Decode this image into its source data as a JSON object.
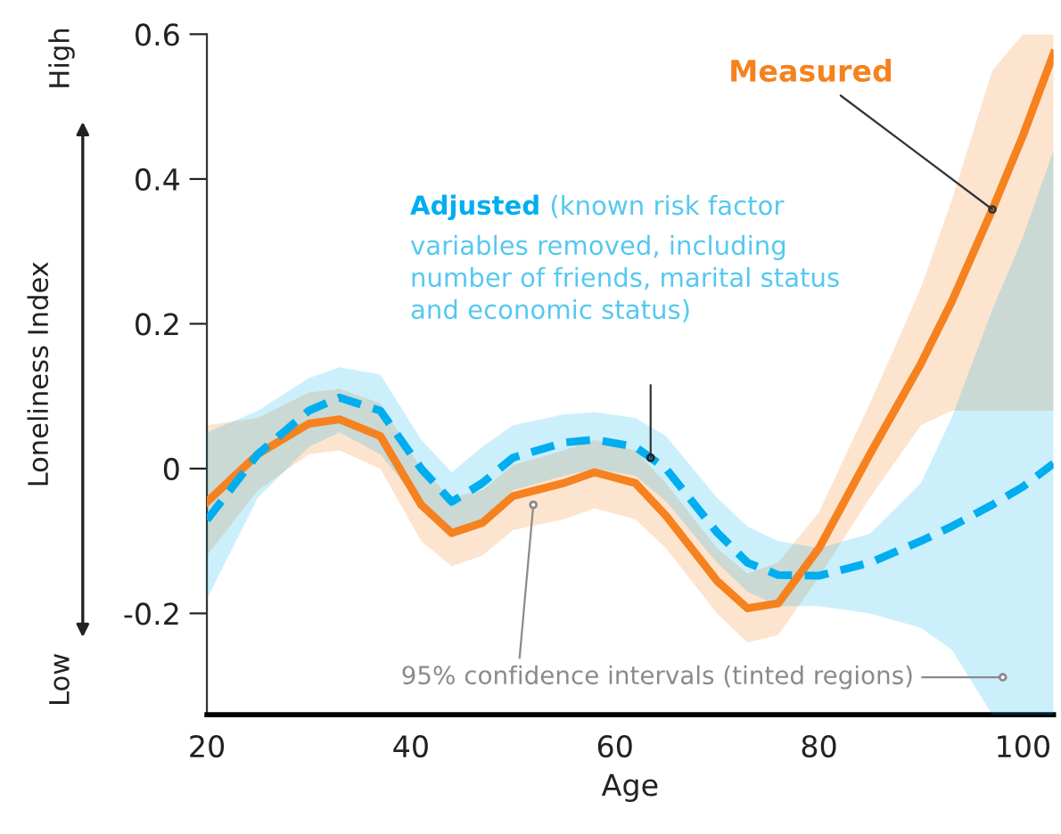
{
  "chart_data": {
    "type": "line",
    "xlabel": "Age",
    "ylabel": "Loneliness Index",
    "x": [
      20,
      25,
      30,
      33,
      37,
      41,
      44,
      47,
      50,
      55,
      58,
      62,
      65,
      70,
      73,
      76,
      80,
      85,
      90,
      93,
      97,
      100,
      103
    ],
    "series": [
      {
        "name": "Measured",
        "color": "#f5821f",
        "line_style": "solid",
        "values": [
          -0.046,
          0.02,
          0.062,
          0.068,
          0.045,
          -0.05,
          -0.089,
          -0.075,
          -0.038,
          -0.02,
          -0.005,
          -0.02,
          -0.065,
          -0.155,
          -0.193,
          -0.186,
          -0.11,
          0.02,
          0.145,
          0.23,
          0.358,
          0.46,
          0.573
        ],
        "lower": [
          -0.12,
          -0.03,
          0.02,
          0.025,
          0.0,
          -0.1,
          -0.135,
          -0.12,
          -0.085,
          -0.07,
          -0.055,
          -0.07,
          -0.11,
          -0.2,
          -0.24,
          -0.23,
          -0.15,
          -0.04,
          0.06,
          0.08,
          0.08,
          0.08,
          0.08
        ],
        "upper": [
          0.06,
          0.07,
          0.105,
          0.11,
          0.09,
          0.0,
          -0.04,
          -0.03,
          0.005,
          0.025,
          0.04,
          0.025,
          -0.02,
          -0.11,
          -0.145,
          -0.13,
          -0.06,
          0.09,
          0.25,
          0.37,
          0.55,
          0.6,
          0.6
        ]
      },
      {
        "name": "Adjusted",
        "color": "#00aeef",
        "line_style": "dashed",
        "values": [
          -0.071,
          0.02,
          0.08,
          0.098,
          0.08,
          0.0,
          -0.046,
          -0.02,
          0.015,
          0.036,
          0.04,
          0.03,
          0.0,
          -0.088,
          -0.13,
          -0.147,
          -0.148,
          -0.13,
          -0.1,
          -0.08,
          -0.05,
          -0.025,
          0.007
        ],
        "lower": [
          -0.18,
          -0.04,
          0.03,
          0.05,
          0.02,
          -0.05,
          -0.09,
          -0.07,
          -0.03,
          -0.01,
          0.0,
          -0.01,
          -0.045,
          -0.13,
          -0.17,
          -0.19,
          -0.19,
          -0.2,
          -0.22,
          -0.25,
          -0.34,
          -0.34,
          -0.34
        ],
        "upper": [
          0.05,
          0.08,
          0.125,
          0.14,
          0.13,
          0.04,
          -0.005,
          0.03,
          0.06,
          0.075,
          0.078,
          0.07,
          0.045,
          -0.04,
          -0.08,
          -0.1,
          -0.11,
          -0.09,
          -0.02,
          0.07,
          0.22,
          0.32,
          0.44
        ]
      }
    ],
    "xlim": [
      20,
      103
    ],
    "ylim": [
      -0.34,
      0.6
    ],
    "xticks": [
      20,
      40,
      60,
      80,
      100
    ],
    "yticks": [
      -0.2,
      0,
      0.2,
      0.4,
      0.6
    ],
    "grid": false,
    "legend": false,
    "annotations": [
      "High",
      "Low",
      "(known risk factor",
      "variables removed, including\nnumber of friends, marital status\nand economic status)",
      {
        "text": "95% confidence intervals (tinted regions)",
        "x": 52,
        "y": -0.05
      }
    ]
  }
}
